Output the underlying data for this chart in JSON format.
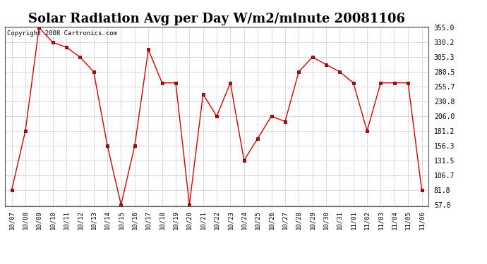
{
  "title": "Solar Radiation Avg per Day W/m2/minute 20081106",
  "copyright_text": "Copyright 2008 Cartronics.com",
  "dates": [
    "10/07",
    "10/08",
    "10/09",
    "10/10",
    "10/11",
    "10/12",
    "10/13",
    "10/14",
    "10/15",
    "10/16",
    "10/17",
    "10/18",
    "10/19",
    "10/20",
    "10/21",
    "10/22",
    "10/23",
    "10/24",
    "10/25",
    "10/26",
    "10/27",
    "10/28",
    "10/29",
    "10/30",
    "10/31",
    "11/01",
    "11/02",
    "11/03",
    "11/04",
    "11/05",
    "11/06"
  ],
  "values": [
    81.8,
    181.2,
    355.0,
    330.2,
    322.0,
    305.3,
    280.5,
    156.3,
    57.0,
    156.3,
    318.0,
    262.0,
    262.0,
    57.0,
    243.0,
    206.0,
    262.0,
    131.5,
    168.5,
    206.0,
    197.0,
    280.5,
    305.3,
    293.0,
    280.5,
    262.0,
    181.2,
    262.0,
    262.0,
    262.0,
    81.8
  ],
  "line_color": "#dd0000",
  "marker": "s",
  "marker_size": 3,
  "background_color": "#ffffff",
  "plot_bg_color": "#ffffff",
  "grid_color": "#bbbbbb",
  "yticks": [
    57.0,
    81.8,
    106.7,
    131.5,
    156.3,
    181.2,
    206.0,
    230.8,
    255.7,
    280.5,
    305.3,
    330.2,
    355.0
  ],
  "ymin": 57.0,
  "ymax": 355.0,
  "title_fontsize": 13,
  "copyright_fontsize": 6.5,
  "tick_fontsize": 6.5,
  "ytick_fontsize": 7
}
